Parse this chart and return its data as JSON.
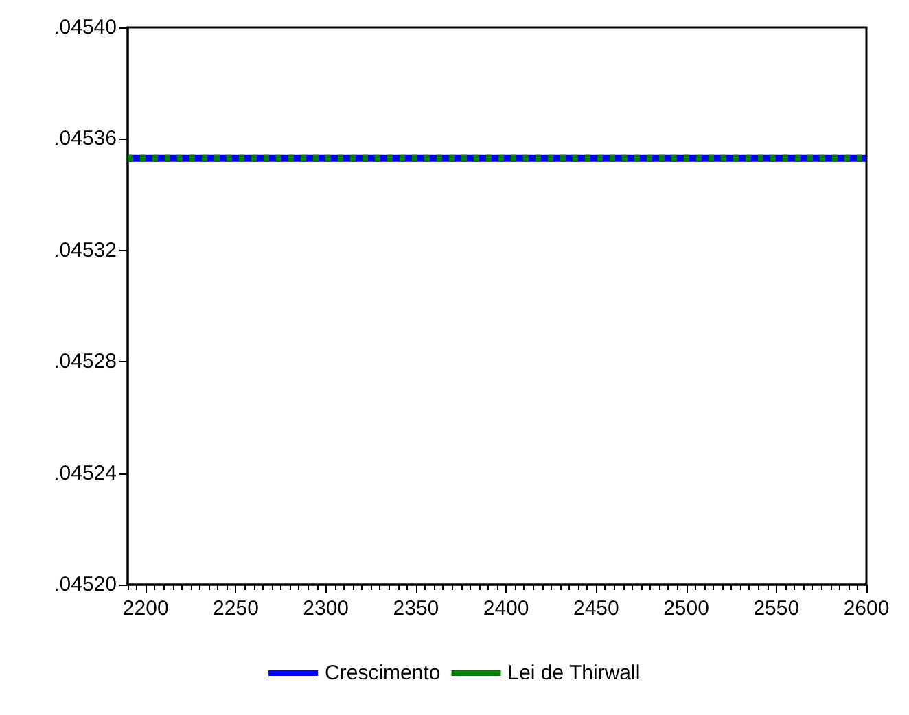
{
  "chart_data": {
    "type": "line",
    "x": [
      2190,
      2600
    ],
    "series": [
      {
        "name": "Crescimento",
        "color": "#0000ff",
        "values": [
          0.045353,
          0.045353
        ],
        "line_style": "solid"
      },
      {
        "name": "Lei de Thirwall",
        "color": "#008000",
        "values": [
          0.045353,
          0.045353
        ],
        "line_style": "dashed"
      }
    ],
    "xlim": [
      2190,
      2600
    ],
    "xticks": [
      2200,
      2250,
      2300,
      2350,
      2400,
      2450,
      2500,
      2550,
      2600
    ],
    "ylim": [
      0.0452,
      0.0454
    ],
    "yticks": [
      {
        "value": 0.0452,
        "label": ".04520"
      },
      {
        "value": 0.04524,
        "label": ".04524"
      },
      {
        "value": 0.04528,
        "label": ".04528"
      },
      {
        "value": 0.04532,
        "label": ".04532"
      },
      {
        "value": 0.04536,
        "label": ".04536"
      },
      {
        "value": 0.0454,
        "label": ".04540"
      }
    ],
    "grid": false,
    "legend": "bottom",
    "marker": "none"
  }
}
